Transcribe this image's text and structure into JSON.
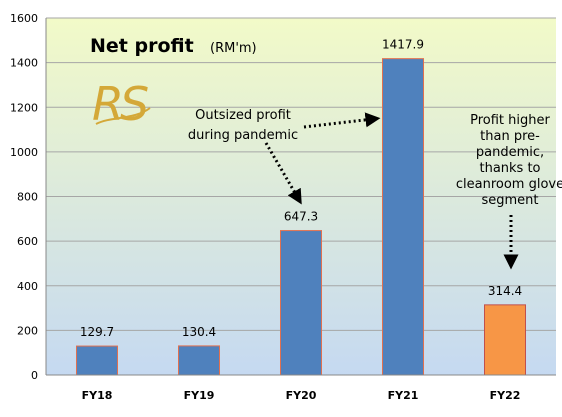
{
  "chart_data": {
    "type": "bar",
    "title": "Net profit",
    "subtitle": "(RM'm)",
    "categories": [
      "FY18",
      "FY19",
      "FY20",
      "FY21",
      "FY22"
    ],
    "values": [
      129.7,
      130.4,
      647.3,
      1417.9,
      314.4
    ],
    "data_labels": [
      "129.7",
      "130.4",
      "647.3",
      "1417.9",
      "314.4"
    ],
    "yticks": [
      "0",
      "200",
      "400",
      "600",
      "800",
      "1000",
      "1200",
      "1400",
      "1600"
    ],
    "ylim": [
      0,
      1600
    ],
    "grid": true,
    "colors": {
      "bar": "#4f81bd",
      "bar_border": "#e07050",
      "highlight_bar": "#f79646",
      "highlight_border": "#c0504d",
      "plot_top": "#f2fac8",
      "plot_bottom": "#c5d9f1"
    },
    "highlight_index": 4,
    "annotations": [
      {
        "id": "pandemic",
        "lines": [
          "Outsized profit",
          "during pandemic"
        ]
      },
      {
        "id": "glove",
        "lines": [
          "Profit higher",
          "than pre-",
          "pandemic,",
          "thanks to",
          "cleanroom glove",
          "segment"
        ]
      }
    ],
    "logo": {
      "text": "RS",
      "color": "#d4a838",
      "icon": "rs-monogram-logo"
    }
  }
}
